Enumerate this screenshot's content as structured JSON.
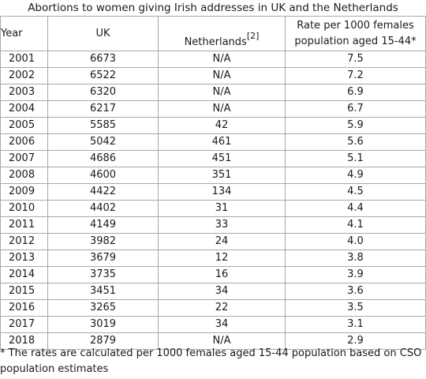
{
  "caption": "Abortions to women giving Irish addresses in UK and the Netherlands",
  "headers": {
    "year": "Year",
    "uk": "UK",
    "netherlands": "Netherlands",
    "netherlands_ref": "[2]",
    "rate_line1": "Rate per 1000 females",
    "rate_line2": "population aged 15-44*"
  },
  "rows": [
    {
      "year": "2001",
      "uk": "6673",
      "nl": "N/A",
      "rate": "7.5"
    },
    {
      "year": "2002",
      "uk": "6522",
      "nl": "N/A",
      "rate": "7.2"
    },
    {
      "year": "2003",
      "uk": "6320",
      "nl": "N/A",
      "rate": "6.9"
    },
    {
      "year": "2004",
      "uk": "6217",
      "nl": "N/A",
      "rate": "6.7"
    },
    {
      "year": "2005",
      "uk": "5585",
      "nl": "42",
      "rate": "5.9"
    },
    {
      "year": "2006",
      "uk": "5042",
      "nl": "461",
      "rate": "5.6"
    },
    {
      "year": "2007",
      "uk": "4686",
      "nl": "451",
      "rate": "5.1"
    },
    {
      "year": "2008",
      "uk": "4600",
      "nl": "351",
      "rate": "4.9"
    },
    {
      "year": "2009",
      "uk": "4422",
      "nl": "134",
      "rate": "4.5"
    },
    {
      "year": "2010",
      "uk": "4402",
      "nl": "31",
      "rate": "4.4"
    },
    {
      "year": "2011",
      "uk": "4149",
      "nl": "33",
      "rate": "4.1"
    },
    {
      "year": "2012",
      "uk": "3982",
      "nl": "24",
      "rate": "4.0"
    },
    {
      "year": "2013",
      "uk": "3679",
      "nl": "12",
      "rate": "3.8"
    },
    {
      "year": "2014",
      "uk": "3735",
      "nl": "16",
      "rate": "3.9"
    },
    {
      "year": "2015",
      "uk": "3451",
      "nl": "34",
      "rate": "3.6"
    },
    {
      "year": "2016",
      "uk": "3265",
      "nl": "22",
      "rate": "3.5"
    },
    {
      "year": "2017",
      "uk": "3019",
      "nl": "34",
      "rate": "3.1"
    },
    {
      "year": "2018",
      "uk": "2879",
      "nl": "N/A",
      "rate": "2.9"
    }
  ],
  "footnote": "* The rates are calculated per 1000 females aged 15-44 population based on CSO population estimates",
  "colors": {
    "border": "#a8a8a8",
    "text": "#1a1a1a",
    "background": "#ffffff"
  }
}
